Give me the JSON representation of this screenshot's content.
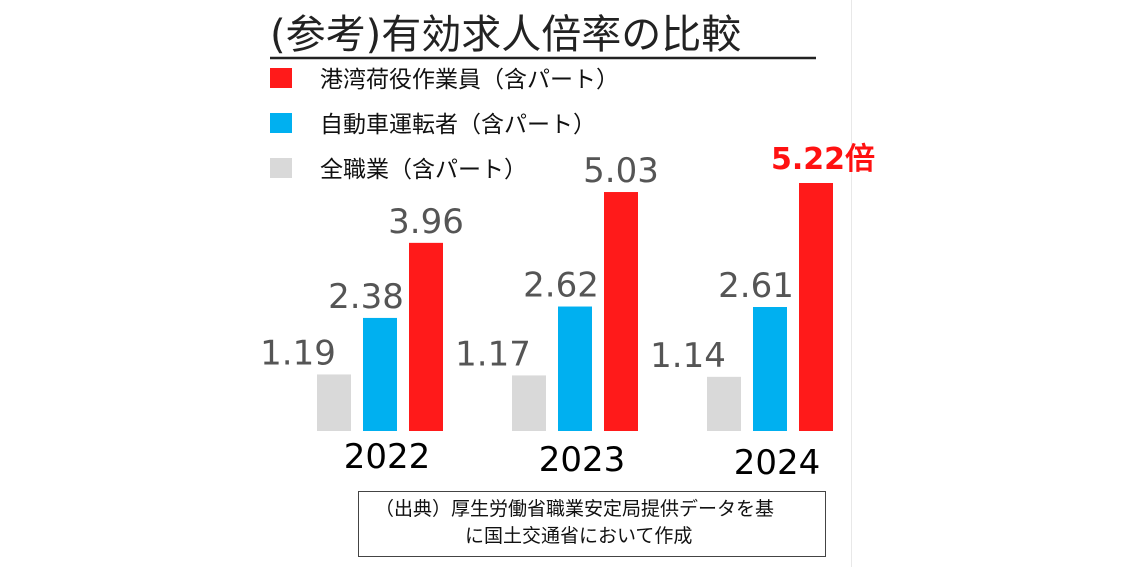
{
  "colors": {
    "cargo": "#ff1a1a",
    "driver": "#00b0f0",
    "all": "#d9d9d9",
    "highlight": "#ff1111"
  },
  "source": {
    "line1": "（出典）厚生労働省職業安定局提供データを基",
    "line2": "に国土交通省において作成"
  },
  "chart_data": {
    "type": "bar",
    "title": "(参考)有効求人倍率の比較",
    "categories": [
      "2022",
      "2023",
      "2024"
    ],
    "series": [
      {
        "name": "全職業（含パート）",
        "key": "all",
        "values": [
          1.19,
          1.17,
          1.14
        ],
        "labels": [
          "1.19",
          "1.17",
          "1.14"
        ]
      },
      {
        "name": "自動車運転者（含パート）",
        "key": "driver",
        "values": [
          2.38,
          2.62,
          2.61
        ],
        "labels": [
          "2.38",
          "2.62",
          "2.61"
        ]
      },
      {
        "name": "港湾荷役作業員（含パート）",
        "key": "cargo",
        "values": [
          3.96,
          5.03,
          5.22
        ],
        "labels": [
          "3.96",
          "5.03",
          "5.22倍"
        ]
      }
    ],
    "legend_order": [
      "cargo",
      "driver",
      "all"
    ],
    "legend_position": "top-left",
    "grid": false,
    "ylim": [
      0,
      5.22
    ]
  }
}
